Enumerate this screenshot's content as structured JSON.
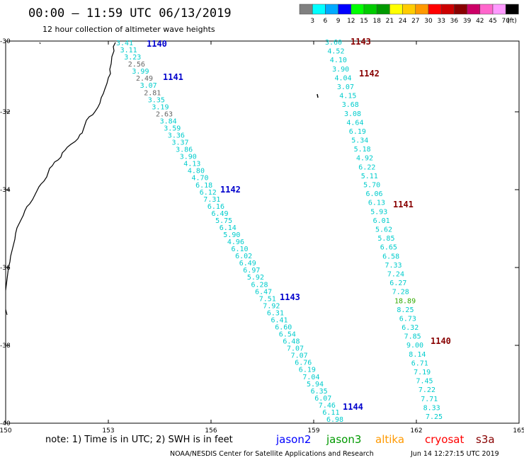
{
  "title": "00:00 – 11:59 UTC 06/13/2019",
  "subtitle": "12 hour collection of altimeter wave heights",
  "legend": {
    "colors": [
      "#808080",
      "#00ffff",
      "#00aaff",
      "#0000ff",
      "#00ff00",
      "#00cc00",
      "#009900",
      "#ffff00",
      "#ffcc00",
      "#ff9900",
      "#ff0000",
      "#cc0000",
      "#880000",
      "#cc0066",
      "#ff66cc",
      "#ff99ff",
      "#000000"
    ],
    "labels": [
      "3",
      "6",
      "9",
      "12",
      "15",
      "18",
      "21",
      "24",
      "27",
      "30",
      "33",
      "36",
      "39",
      "42",
      "45",
      "70",
      "(ft)"
    ]
  },
  "axes": {
    "lon_ticks": [
      "150",
      "153",
      "156",
      "159",
      "162",
      "165"
    ],
    "lat_ticks": [
      "-30",
      "-32",
      "-34",
      "-36",
      "-38",
      "-40"
    ]
  },
  "passes": [
    {
      "label": "1140",
      "color": "#0000cc"
    },
    {
      "label": "1141",
      "color": "#0000cc"
    },
    {
      "label": "1142",
      "color": "#0000cc"
    },
    {
      "label": "1143",
      "color": "#0000cc"
    },
    {
      "label": "1144",
      "color": "#0000cc"
    },
    {
      "label": "1143",
      "color": "#880000"
    },
    {
      "label": "1142",
      "color": "#880000"
    },
    {
      "label": "1141",
      "color": "#880000"
    },
    {
      "label": "1140",
      "color": "#880000"
    }
  ],
  "track_a": {
    "values": [
      "3.41",
      "3.11",
      "3.23",
      "2.56",
      "3.99",
      "2.49",
      "3.07",
      "2.81",
      "3.35",
      "3.19",
      "2.63",
      "3.84",
      "3.59",
      "3.36",
      "3.37",
      "3.86",
      "3.90",
      "4.13",
      "4.80",
      "4.70",
      "6.18",
      "6.12",
      "7.31",
      "6.16",
      "6.49",
      "5.75",
      "6.14",
      "5.90",
      "4.96",
      "6.10",
      "6.02",
      "6.49",
      "6.97",
      "5.92",
      "6.28",
      "6.47",
      "7.51",
      "7.92",
      "6.31",
      "6.41",
      "6.60",
      "6.54",
      "6.48",
      "7.07",
      "7.07",
      "6.76",
      "6.19",
      "7.04",
      "5.94",
      "6.35",
      "6.07",
      "7.46",
      "6.11",
      "6.98"
    ],
    "colors": [
      "c",
      "c",
      "c",
      "g",
      "c",
      "g",
      "c",
      "g",
      "c",
      "c",
      "g",
      "c",
      "c",
      "c",
      "c",
      "c",
      "c",
      "c",
      "c",
      "c",
      "c",
      "c",
      "c",
      "c",
      "c",
      "c",
      "c",
      "c",
      "c",
      "c",
      "c",
      "c",
      "c",
      "c",
      "c",
      "c",
      "c",
      "c",
      "c",
      "c",
      "c",
      "c",
      "c",
      "c",
      "c",
      "c",
      "c",
      "c",
      "c",
      "c",
      "c",
      "c",
      "c",
      "c"
    ]
  },
  "track_b": {
    "values": [
      "3.60",
      "4.52",
      "4.10",
      "3.90",
      "4.04",
      "3.07",
      "4.15",
      "3.68",
      "3.08",
      "4.64",
      "6.19",
      "5.34",
      "5.18",
      "4.92",
      "6.22",
      "5.11",
      "5.70",
      "6.06",
      "6.13",
      "5.93",
      "6.01",
      "5.62",
      "5.85",
      "6.65",
      "6.58",
      "7.33",
      "7.24",
      "6.27",
      "7.28",
      "18.89",
      "8.25",
      "6.73",
      "6.32",
      "7.85",
      "9.00",
      "8.14",
      "6.71",
      "7.19",
      "7.45",
      "7.22",
      "7.71",
      "8.33",
      "7.25"
    ],
    "colors": [
      "c",
      "c",
      "c",
      "c",
      "c",
      "c",
      "c",
      "c",
      "c",
      "c",
      "c",
      "c",
      "c",
      "c",
      "c",
      "c",
      "c",
      "c",
      "c",
      "c",
      "c",
      "c",
      "c",
      "c",
      "c",
      "c",
      "c",
      "c",
      "c",
      "G",
      "c",
      "c",
      "c",
      "c",
      "c",
      "c",
      "c",
      "c",
      "c",
      "c",
      "c",
      "c",
      "c"
    ]
  },
  "note": "note:  1) Time is in UTC;  2) SWH is in feet",
  "satellites": [
    {
      "name": "jason2",
      "color": "#0000ff"
    },
    {
      "name": "jason3",
      "color": "#009900"
    },
    {
      "name": "altika",
      "color": "#ff9900"
    },
    {
      "name": "cryosat",
      "color": "#ff0000"
    },
    {
      "name": "s3a",
      "color": "#880000"
    }
  ],
  "credit_left": "NOAA/NESDIS Center for Satellite Applications and Research",
  "credit_right": "Jun 14 12:27:15 UTC 2019"
}
